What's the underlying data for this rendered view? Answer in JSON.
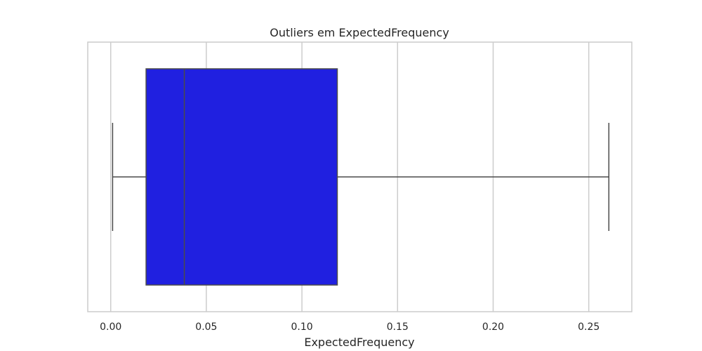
{
  "chart_data": {
    "type": "boxplot",
    "title": "Outliers em ExpectedFrequency",
    "xlabel": "ExpectedFrequency",
    "ylabel": "",
    "orientation": "horizontal",
    "xlim": [
      -0.012,
      0.2725
    ],
    "xticks": [
      0.0,
      0.05,
      0.1,
      0.15,
      0.2,
      0.25
    ],
    "xtick_labels": [
      "0.00",
      "0.05",
      "0.10",
      "0.15",
      "0.20",
      "0.25"
    ],
    "grid": true,
    "box": {
      "whisker_low": 0.001,
      "q1": 0.0185,
      "median": 0.0385,
      "q3": 0.1185,
      "whisker_high": 0.2605,
      "outliers": []
    },
    "colors": {
      "box_fill": "#2020e0",
      "line": "#4a4a4a",
      "grid": "#cccccc",
      "frame": "#cccccc"
    }
  }
}
